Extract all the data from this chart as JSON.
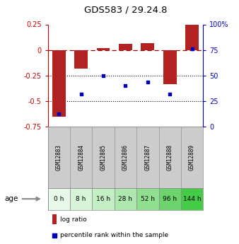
{
  "title": "GDS583 / 29.24.8",
  "samples": [
    "GSM12883",
    "GSM12884",
    "GSM12885",
    "GSM12886",
    "GSM12887",
    "GSM12888",
    "GSM12889"
  ],
  "ages": [
    "0 h",
    "8 h",
    "16 h",
    "28 h",
    "52 h",
    "96 h",
    "144 h"
  ],
  "log_ratio": [
    -0.65,
    -0.18,
    0.02,
    0.06,
    0.07,
    -0.33,
    0.25
  ],
  "percentile_rank": [
    13,
    32,
    50,
    40,
    44,
    32,
    76
  ],
  "bar_color": "#b22222",
  "dot_color": "#0000bb",
  "ylim_left": [
    -0.75,
    0.25
  ],
  "ylim_right": [
    0,
    100
  ],
  "yticks_left": [
    -0.75,
    -0.5,
    -0.25,
    0,
    0.25
  ],
  "ytick_labels_left": [
    "-0.75",
    "-0.5",
    "-0.25",
    "0",
    "0.25"
  ],
  "yticks_right": [
    0,
    25,
    50,
    75,
    100
  ],
  "ytick_labels_right": [
    "0",
    "25",
    "50",
    "75",
    "100%"
  ],
  "hlines_dotted": [
    -0.25,
    -0.5
  ],
  "age_colors": [
    "#e8f8e8",
    "#d8f4d8",
    "#c4efc4",
    "#aee8ae",
    "#90de90",
    "#6dd46d",
    "#44cc44"
  ],
  "gsm_color": "#cccccc",
  "bg_color": "#ffffff"
}
